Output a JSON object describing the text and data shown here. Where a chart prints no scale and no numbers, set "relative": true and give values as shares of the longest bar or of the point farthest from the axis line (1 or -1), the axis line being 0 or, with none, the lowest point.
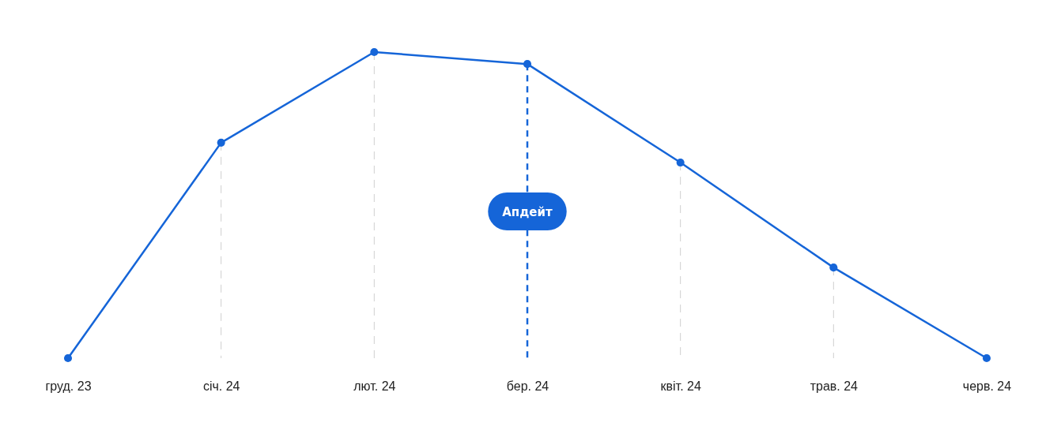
{
  "chart_data": {
    "type": "line",
    "relative": true,
    "categories": [
      "груд. 23",
      "січ. 24",
      "лют. 24",
      "бер. 24",
      "квіт. 24",
      "трав. 24",
      "черв. 24"
    ],
    "series": [
      {
        "color": "#1565d8",
        "values": [
          0,
          0.704,
          1,
          0.961,
          0.639,
          0.296,
          0
        ]
      }
    ],
    "marker": "circle",
    "line_style": "solid",
    "ref_lines": [
      {
        "axis": "x",
        "value": "січ. 24",
        "color": "#cfcfcf",
        "line_style": "dashed"
      },
      {
        "axis": "x",
        "value": "лют. 24",
        "color": "#cfcfcf",
        "line_style": "dashed"
      },
      {
        "axis": "x",
        "value": "бер. 24",
        "label": "Апдейт",
        "color": "#1565d8",
        "line_style": "dashed"
      },
      {
        "axis": "x",
        "value": "квіт. 24",
        "color": "#cfcfcf",
        "line_style": "dashed"
      },
      {
        "axis": "x",
        "value": "трав. 24",
        "color": "#cfcfcf",
        "line_style": "dashed"
      }
    ]
  }
}
